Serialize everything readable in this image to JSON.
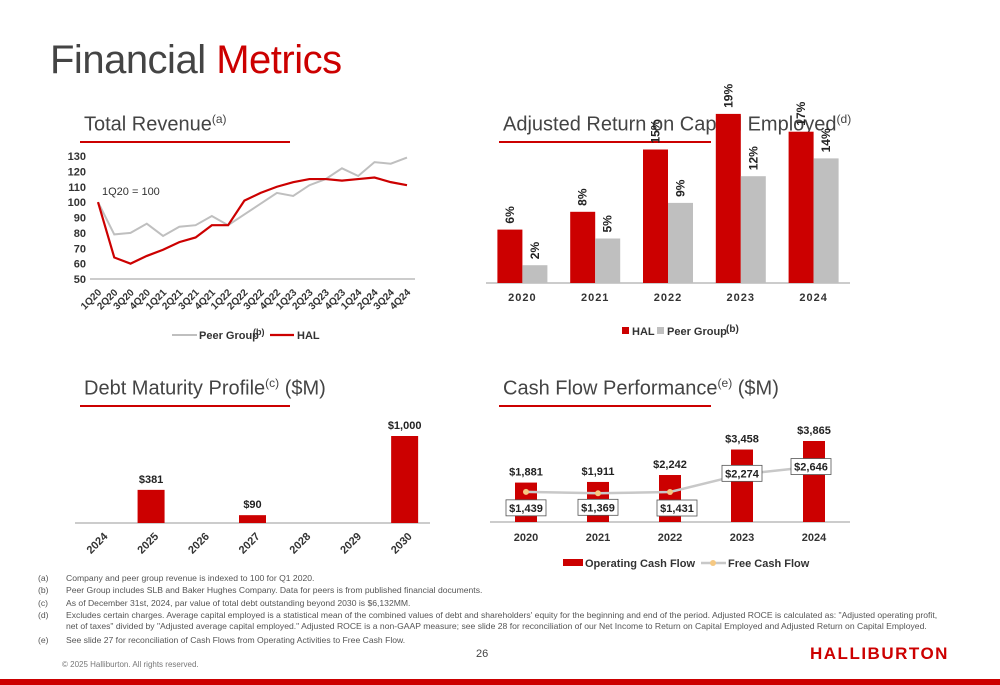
{
  "page": {
    "title_main": "Financial",
    "title_accent": "Metrics",
    "page_number": "26",
    "copyright": "© 2025 Halliburton. All rights reserved.",
    "logo": "HALLIBURTON"
  },
  "sections": {
    "revenue": {
      "title": "Total Revenue",
      "sup": "(a)"
    },
    "roce": {
      "title": "Adjusted Return on Capital Employed",
      "sup": "(d)"
    },
    "debt": {
      "title": "Debt Maturity Profile",
      "sup": "(c)",
      "suffix": " ($M)"
    },
    "cashflow": {
      "title": "Cash Flow Performance",
      "sup": "(e)",
      "suffix": " ($M)"
    }
  },
  "colors": {
    "hal": "#cc0000",
    "peer": "#bfbfbf",
    "fcf_marker": "#f5c882"
  },
  "chart_data": [
    {
      "id": "revenue",
      "type": "line",
      "x": [
        "1Q20",
        "2Q20",
        "3Q20",
        "4Q20",
        "1Q21",
        "2Q21",
        "3Q21",
        "4Q21",
        "1Q22",
        "2Q22",
        "3Q22",
        "4Q22",
        "1Q23",
        "2Q23",
        "3Q23",
        "4Q23",
        "1Q24",
        "2Q24",
        "3Q24",
        "4Q24"
      ],
      "series": [
        {
          "name": "Peer Group",
          "name_sup": "(b)",
          "values": [
            100,
            79,
            80,
            86,
            78,
            84,
            85,
            91,
            85,
            92,
            99,
            106,
            104,
            111,
            115,
            122,
            117,
            126,
            125,
            129
          ]
        },
        {
          "name": "HAL",
          "values": [
            100,
            64,
            60,
            65,
            69,
            74,
            77,
            85,
            85,
            101,
            106,
            110,
            113,
            115,
            115,
            114,
            115,
            116,
            113,
            111
          ]
        }
      ],
      "ylim": [
        50,
        130
      ],
      "yticks": [
        50,
        60,
        70,
        80,
        90,
        100,
        110,
        120,
        130
      ],
      "annotation": "1Q20 = 100",
      "legend": "bottom",
      "grid": false
    },
    {
      "id": "roce",
      "type": "bar",
      "categories": [
        "2020",
        "2021",
        "2022",
        "2023",
        "2024"
      ],
      "series": [
        {
          "name": "HAL",
          "values": [
            6,
            8,
            15,
            19,
            17
          ],
          "labels": [
            "6%",
            "8%",
            "15%",
            "19%",
            "17%"
          ]
        },
        {
          "name": "Peer Group",
          "name_sup": "(b)",
          "values": [
            2,
            5,
            9,
            12,
            14
          ],
          "labels": [
            "2%",
            "5%",
            "9%",
            "12%",
            "14%"
          ]
        }
      ],
      "ylim": [
        0,
        20
      ],
      "legend": "bottom"
    },
    {
      "id": "debt",
      "type": "bar",
      "categories": [
        "2024",
        "2025",
        "2026",
        "2027",
        "2028",
        "2029",
        "2030"
      ],
      "values": [
        0,
        381,
        0,
        90,
        0,
        0,
        1000
      ],
      "labels": [
        "",
        "$381",
        "",
        "$90",
        "",
        "",
        "$1,000"
      ],
      "ylim": [
        0,
        1000
      ]
    },
    {
      "id": "cashflow",
      "type": "bar",
      "categories": [
        "2020",
        "2021",
        "2022",
        "2023",
        "2024"
      ],
      "series": [
        {
          "name": "Operating Cash Flow",
          "values": [
            1881,
            1911,
            2242,
            3458,
            3865
          ],
          "labels": [
            "$1,881",
            "$1,911",
            "$2,242",
            "$3,458",
            "$3,865"
          ]
        },
        {
          "name": "Free Cash Flow",
          "values": [
            1439,
            1369,
            1431,
            2274,
            2646
          ],
          "labels": [
            "$1,439",
            "$1,369",
            "$1,431",
            "$2,274",
            "$2,646"
          ]
        }
      ],
      "ylim": [
        0,
        3865
      ],
      "legend": "bottom"
    }
  ],
  "footnotes": [
    {
      "tag": "(a)",
      "text": "Company and peer group revenue is indexed to 100 for Q1 2020."
    },
    {
      "tag": "(b)",
      "text": "Peer Group includes SLB and Baker Hughes Company. Data for peers is from published financial documents."
    },
    {
      "tag": "(c)",
      "text": "As of December 31st, 2024, par value of total debt outstanding beyond 2030 is $6,132MM."
    },
    {
      "tag": "(d)",
      "text": "Excludes certain charges. Average capital employed is a statistical mean of the combined values of debt and shareholders' equity for the beginning and end of the period. Adjusted ROCE is calculated as: \"Adjusted operating profit, net of taxes\" divided by \"Adjusted average capital employed.\" Adjusted ROCE is a non-GAAP measure; see slide 28 for reconciliation of our Net Income to Return on Capital Employed and Adjusted Return on Capital Employed."
    },
    {
      "tag": "(e)",
      "text": "See slide 27 for reconciliation of Cash Flows from Operating Activities to Free Cash Flow."
    }
  ]
}
